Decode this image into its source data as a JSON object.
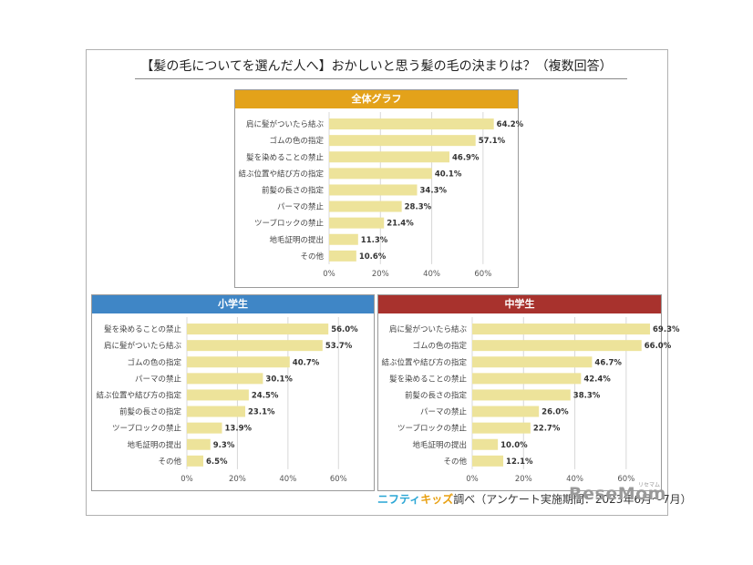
{
  "title": "【髪の毛についてを選んだ人へ】おかしいと思う髪の毛の決まりは？（複数回答）",
  "footer": {
    "brand_part1": "ニフティ",
    "brand_part2": "キッズ",
    "text": "調べ（アンケート実施期間：2023年6月～7月）"
  },
  "watermark": {
    "text": "ReseMom",
    "small": "リセマム"
  },
  "colors": {
    "bar": "#ede39a",
    "grid": "#d8d8d8",
    "overall_header": "#e3a21a",
    "elementary_header": "#3f86c6",
    "junior_header": "#a8322d"
  },
  "chart_data": [
    {
      "id": "overall",
      "type": "bar",
      "orientation": "horizontal",
      "title": "全体グラフ",
      "categories": [
        "肩に髪がついたら結ぶ",
        "ゴムの色の指定",
        "髪を染めることの禁止",
        "結ぶ位置や結び方の指定",
        "前髪の長さの指定",
        "パーマの禁止",
        "ツーブロックの禁止",
        "地毛証明の提出",
        "その他"
      ],
      "values": [
        64.2,
        57.1,
        46.9,
        40.1,
        34.3,
        28.3,
        21.4,
        11.3,
        10.6
      ],
      "value_labels": [
        "64.2%",
        "57.1%",
        "46.9%",
        "40.1%",
        "34.3%",
        "28.3%",
        "21.4%",
        "11.3%",
        "10.6%"
      ],
      "xlim": [
        0,
        70
      ],
      "ticks": [
        0,
        20,
        40,
        60
      ],
      "tick_labels": [
        "0%",
        "20%",
        "40%",
        "60%"
      ],
      "grid": true,
      "legend": "none"
    },
    {
      "id": "elementary",
      "type": "bar",
      "orientation": "horizontal",
      "title": "小学生",
      "categories": [
        "髪を染めることの禁止",
        "肩に髪がついたら結ぶ",
        "ゴムの色の指定",
        "パーマの禁止",
        "結ぶ位置や結び方の指定",
        "前髪の長さの指定",
        "ツーブロックの禁止",
        "地毛証明の提出",
        "その他"
      ],
      "values": [
        56.0,
        53.7,
        40.7,
        30.1,
        24.5,
        23.1,
        13.9,
        9.3,
        6.5
      ],
      "value_labels": [
        "56.0%",
        "53.7%",
        "40.7%",
        "30.1%",
        "24.5%",
        "23.1%",
        "13.9%",
        "9.3%",
        "6.5%"
      ],
      "xlim": [
        0,
        70
      ],
      "ticks": [
        0,
        20,
        40,
        60
      ],
      "tick_labels": [
        "0%",
        "20%",
        "40%",
        "60%"
      ],
      "grid": true,
      "legend": "none"
    },
    {
      "id": "junior",
      "type": "bar",
      "orientation": "horizontal",
      "title": "中学生",
      "categories": [
        "肩に髪がついたら結ぶ",
        "ゴムの色の指定",
        "結ぶ位置や結び方の指定",
        "髪を染めることの禁止",
        "前髪の長さの指定",
        "パーマの禁止",
        "ツーブロックの禁止",
        "地毛証明の提出",
        "その他"
      ],
      "values": [
        69.3,
        66.0,
        46.7,
        42.4,
        38.3,
        26.0,
        22.7,
        10.0,
        12.1
      ],
      "value_labels": [
        "69.3%",
        "66.0%",
        "46.7%",
        "42.4%",
        "38.3%",
        "26.0%",
        "22.7%",
        "10.0%",
        "12.1%"
      ],
      "xlim": [
        0,
        70
      ],
      "ticks": [
        0,
        20,
        40,
        60
      ],
      "tick_labels": [
        "0%",
        "20%",
        "40%",
        "60%"
      ],
      "grid": true,
      "legend": "none"
    }
  ]
}
